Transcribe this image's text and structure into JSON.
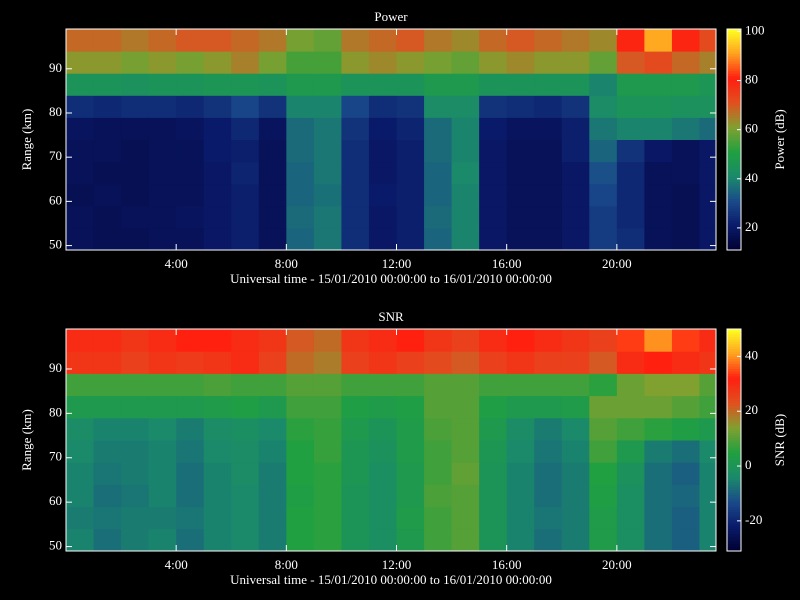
{
  "chart_data": [
    {
      "type": "heatmap",
      "title": "Power",
      "x_label": "Universal time - 15/01/2010 00:00:00 to 16/01/2010 00:00:00",
      "y_label": "Range (km)",
      "colorbar_label": "Power (dB)",
      "xlim": [
        0,
        23.6
      ],
      "ylim": [
        49,
        99
      ],
      "xticks": [
        {
          "value": 4,
          "label": "4:00"
        },
        {
          "value": 8,
          "label": "8:00"
        },
        {
          "value": 12,
          "label": "12:00"
        },
        {
          "value": 16,
          "label": "16:00"
        },
        {
          "value": 20,
          "label": "20:00"
        }
      ],
      "yticks": [
        50,
        60,
        70,
        80,
        90
      ],
      "clim": [
        11,
        101
      ],
      "cticks": [
        20,
        40,
        60,
        80,
        100
      ],
      "colormap": [
        "#000030",
        "#0a1a6a",
        "#1a4a8a",
        "#1a8a6a",
        "#20a040",
        "#80a030",
        "#e05020",
        "#ff2010",
        "#ffa020",
        "#ffff20"
      ],
      "x_edges": [
        0,
        1,
        2,
        3,
        4,
        5,
        6,
        7,
        8,
        9,
        10,
        11,
        12,
        13,
        14,
        15,
        16,
        17,
        18,
        19,
        20,
        21,
        22,
        23,
        23.6
      ],
      "y_edges": [
        49,
        54,
        59,
        64,
        69,
        74,
        79,
        84,
        89,
        94,
        99
      ],
      "z": [
        [
          18,
          17,
          17,
          18,
          18,
          20,
          22,
          18,
          35,
          38,
          25,
          20,
          22,
          35,
          40,
          20,
          18,
          18,
          20,
          28,
          25,
          18,
          17,
          20
        ],
        [
          18,
          17,
          18,
          18,
          19,
          20,
          22,
          18,
          36,
          38,
          25,
          20,
          22,
          36,
          40,
          20,
          18,
          18,
          20,
          28,
          24,
          18,
          17,
          20
        ],
        [
          17,
          18,
          17,
          18,
          18,
          20,
          22,
          18,
          35,
          37,
          25,
          21,
          22,
          35,
          40,
          20,
          18,
          18,
          20,
          30,
          24,
          18,
          17,
          20
        ],
        [
          18,
          17,
          17,
          18,
          18,
          20,
          23,
          18,
          35,
          38,
          25,
          20,
          22,
          35,
          41,
          20,
          18,
          18,
          20,
          32,
          24,
          18,
          18,
          20
        ],
        [
          18,
          18,
          17,
          18,
          18,
          21,
          22,
          18,
          36,
          38,
          25,
          20,
          22,
          36,
          40,
          20,
          18,
          18,
          22,
          35,
          26,
          20,
          18,
          20
        ],
        [
          19,
          18,
          18,
          18,
          19,
          21,
          24,
          19,
          36,
          38,
          26,
          21,
          23,
          36,
          40,
          21,
          19,
          19,
          22,
          38,
          40,
          40,
          38,
          36
        ],
        [
          25,
          24,
          25,
          25,
          24,
          26,
          30,
          26,
          40,
          40,
          30,
          25,
          26,
          42,
          42,
          26,
          25,
          24,
          26,
          42,
          45,
          45,
          44,
          44
        ],
        [
          45,
          45,
          44,
          45,
          45,
          46,
          46,
          45,
          48,
          48,
          45,
          45,
          45,
          48,
          48,
          45,
          45,
          45,
          45,
          40,
          48,
          48,
          48,
          46
        ],
        [
          62,
          62,
          60,
          62,
          60,
          62,
          65,
          60,
          55,
          55,
          62,
          64,
          62,
          60,
          58,
          62,
          64,
          62,
          62,
          58,
          70,
          72,
          68,
          65
        ],
        [
          68,
          68,
          66,
          68,
          70,
          70,
          68,
          66,
          60,
          58,
          66,
          68,
          70,
          66,
          64,
          68,
          70,
          68,
          66,
          64,
          80,
          92,
          80,
          72
        ]
      ]
    },
    {
      "type": "heatmap",
      "title": "SNR",
      "x_label": "Universal time - 15/01/2010 00:00:00 to 16/01/2010 00:00:00",
      "y_label": "Range (km)",
      "colorbar_label": "SNR (dB)",
      "xlim": [
        0,
        23.6
      ],
      "ylim": [
        49,
        99
      ],
      "xticks": [
        {
          "value": 4,
          "label": "4:00"
        },
        {
          "value": 8,
          "label": "8:00"
        },
        {
          "value": 12,
          "label": "12:00"
        },
        {
          "value": 16,
          "label": "16:00"
        },
        {
          "value": 20,
          "label": "20:00"
        }
      ],
      "yticks": [
        50,
        60,
        70,
        80,
        90
      ],
      "clim": [
        -31,
        50
      ],
      "cticks": [
        -20,
        0,
        20,
        40
      ],
      "colormap": [
        "#000030",
        "#0a1a6a",
        "#1a4a8a",
        "#1a8a6a",
        "#20a040",
        "#80a030",
        "#e05020",
        "#ff2010",
        "#ffa020",
        "#ffff20"
      ],
      "x_edges": [
        0,
        1,
        2,
        3,
        4,
        5,
        6,
        7,
        8,
        9,
        10,
        11,
        12,
        13,
        14,
        15,
        16,
        17,
        18,
        19,
        20,
        21,
        22,
        23,
        23.6
      ],
      "y_edges": [
        49,
        54,
        59,
        64,
        69,
        74,
        79,
        84,
        89,
        94,
        99
      ],
      "z": [
        [
          -5,
          -8,
          -6,
          -5,
          -8,
          -5,
          -4,
          -6,
          5,
          6,
          0,
          -2,
          2,
          8,
          10,
          0,
          -5,
          -8,
          -6,
          3,
          -2,
          -8,
          -10,
          -5
        ],
        [
          -6,
          -7,
          -6,
          -6,
          -7,
          -5,
          -4,
          -6,
          5,
          6,
          0,
          -2,
          3,
          8,
          10,
          0,
          -5,
          -7,
          -6,
          3,
          -2,
          -8,
          -10,
          -5
        ],
        [
          -5,
          -8,
          -7,
          -5,
          -8,
          -5,
          -4,
          -6,
          4,
          6,
          0,
          -2,
          2,
          9,
          10,
          0,
          -5,
          -8,
          -6,
          4,
          -2,
          -8,
          -9,
          -5
        ],
        [
          -5,
          -7,
          -6,
          -5,
          -8,
          -5,
          -3,
          -6,
          5,
          6,
          1,
          -2,
          2,
          8,
          11,
          0,
          -5,
          -8,
          -6,
          5,
          -1,
          -8,
          -10,
          -5
        ],
        [
          -4,
          -6,
          -6,
          -5,
          -7,
          -4,
          -3,
          -5,
          5,
          7,
          1,
          -1,
          3,
          8,
          10,
          1,
          -4,
          -7,
          -5,
          8,
          2,
          -6,
          -8,
          -4
        ],
        [
          -3,
          -5,
          -5,
          -4,
          -6,
          -3,
          -2,
          -4,
          6,
          7,
          2,
          0,
          3,
          9,
          10,
          2,
          -3,
          -6,
          -4,
          10,
          8,
          6,
          4,
          2
        ],
        [
          2,
          2,
          2,
          2,
          2,
          3,
          4,
          2,
          8,
          8,
          4,
          3,
          4,
          10,
          10,
          4,
          2,
          2,
          3,
          12,
          12,
          12,
          10,
          8
        ],
        [
          8,
          8,
          8,
          8,
          8,
          9,
          8,
          8,
          10,
          10,
          8,
          8,
          8,
          10,
          10,
          8,
          8,
          8,
          8,
          6,
          12,
          14,
          14,
          10
        ],
        [
          28,
          28,
          26,
          28,
          27,
          28,
          30,
          26,
          20,
          18,
          26,
          28,
          26,
          24,
          22,
          26,
          28,
          26,
          26,
          22,
          30,
          32,
          30,
          28
        ],
        [
          30,
          30,
          28,
          30,
          32,
          32,
          30,
          28,
          22,
          20,
          28,
          30,
          32,
          28,
          26,
          30,
          32,
          30,
          28,
          26,
          34,
          40,
          34,
          30
        ]
      ]
    }
  ]
}
